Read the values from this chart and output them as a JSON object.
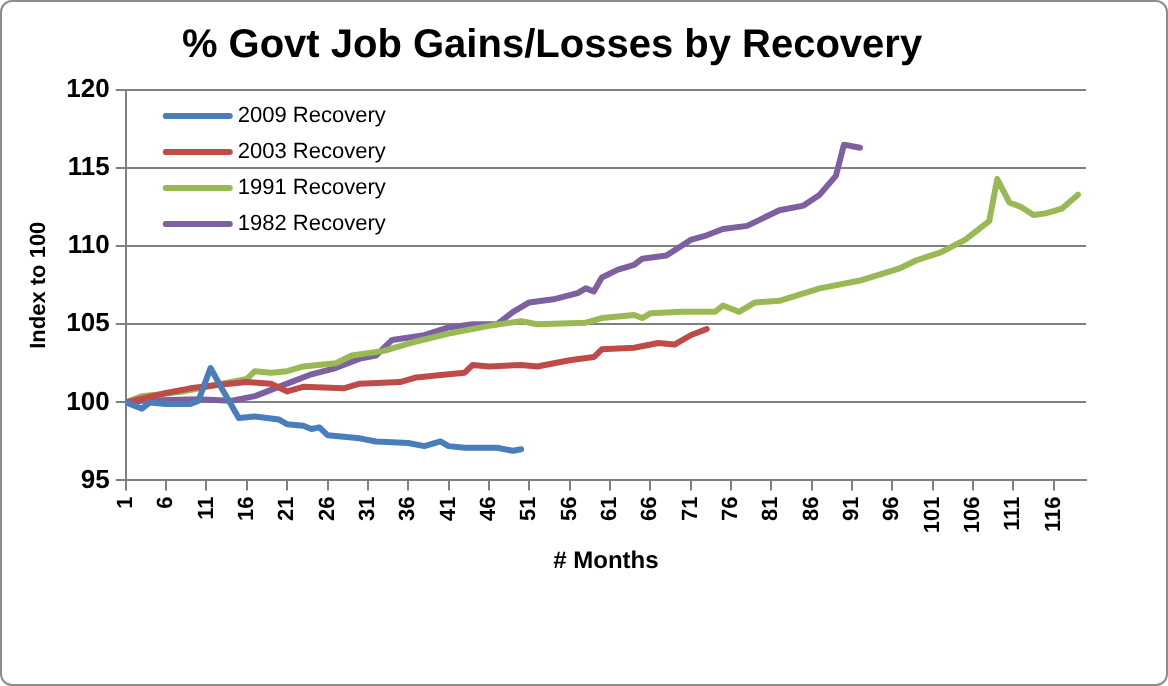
{
  "chart_data": {
    "type": "line",
    "title": "% Govt Job Gains/Losses by Recovery",
    "xlabel": "# Months",
    "ylabel": "Index to 100",
    "xlim": [
      1,
      120
    ],
    "xticks": [
      1,
      6,
      11,
      16,
      21,
      26,
      31,
      36,
      41,
      46,
      51,
      56,
      61,
      66,
      71,
      76,
      81,
      86,
      91,
      96,
      101,
      106,
      111,
      116
    ],
    "ylim": [
      95,
      120
    ],
    "yticks": [
      95,
      100,
      105,
      110,
      115,
      120
    ],
    "grid": "y",
    "legend": "top left",
    "marker": "none",
    "line_style": "solid",
    "series": [
      {
        "name": "2009 Recovery",
        "color": "#4a7ebb",
        "x": [
          1,
          3,
          4,
          6,
          9,
          10,
          11.5,
          13,
          15,
          17,
          20,
          21,
          23,
          24,
          25,
          26,
          28,
          30,
          32,
          36,
          38,
          40,
          41,
          43,
          47,
          49,
          50
        ],
        "values": [
          100,
          99.6,
          100,
          99.9,
          99.9,
          100.1,
          102.2,
          100.8,
          99,
          99.1,
          98.9,
          98.6,
          98.5,
          98.3,
          98.4,
          97.9,
          97.8,
          97.7,
          97.5,
          97.4,
          97.2,
          97.5,
          97.2,
          97.1,
          97.1,
          96.9,
          97
        ]
      },
      {
        "name": "2003 Recovery",
        "color": "#be4b48",
        "x": [
          1,
          6,
          9,
          12,
          16,
          19,
          21,
          23,
          28,
          30,
          35,
          37,
          41,
          43,
          44,
          46,
          50,
          52,
          56,
          59,
          60,
          64,
          67,
          69,
          71,
          73
        ],
        "values": [
          100,
          100.6,
          100.9,
          101.1,
          101.3,
          101.2,
          100.7,
          101,
          100.9,
          101.2,
          101.3,
          101.6,
          101.8,
          101.9,
          102.4,
          102.3,
          102.4,
          102.3,
          102.7,
          102.9,
          103.4,
          103.5,
          103.8,
          103.7,
          104.3,
          104.7
        ]
      },
      {
        "name": "1991 Recovery",
        "color": "#98b954",
        "x": [
          1,
          3,
          5,
          8,
          12,
          16,
          17,
          19,
          21,
          23,
          27,
          29,
          33,
          37,
          41,
          46,
          50,
          52,
          58,
          60,
          64,
          65,
          66,
          70,
          74,
          75,
          77,
          79,
          82,
          87,
          92,
          97,
          99,
          102,
          105,
          108,
          109,
          110.5,
          112,
          113.5,
          115,
          117,
          119
        ],
        "values": [
          100,
          100.4,
          100.5,
          100.7,
          101.1,
          101.5,
          102,
          101.9,
          102,
          102.3,
          102.5,
          103,
          103.3,
          103.9,
          104.4,
          104.9,
          105.2,
          105,
          105.1,
          105.4,
          105.6,
          105.4,
          105.7,
          105.8,
          105.8,
          106.2,
          105.8,
          106.4,
          106.5,
          107.3,
          107.8,
          108.6,
          109.1,
          109.6,
          110.4,
          111.6,
          114.3,
          112.8,
          112.5,
          112,
          112.1,
          112.4,
          113.3
        ]
      },
      {
        "name": "1982 Recovery",
        "color": "#7d60a0",
        "x": [
          1,
          3,
          10,
          14,
          17,
          19,
          21,
          24,
          27,
          30,
          32,
          34,
          38,
          41,
          44,
          47,
          49,
          51,
          54,
          57,
          58,
          59,
          60,
          62,
          64,
          65,
          68,
          71,
          73,
          75,
          78,
          80,
          82,
          85,
          87,
          89,
          90,
          92
        ],
        "values": [
          100,
          100.1,
          100.2,
          100.1,
          100.4,
          100.8,
          101.2,
          101.8,
          102.2,
          102.8,
          103,
          104,
          104.3,
          104.8,
          105,
          105,
          105.8,
          106.4,
          106.6,
          107,
          107.3,
          107.1,
          108,
          108.5,
          108.8,
          109.2,
          109.4,
          110.4,
          110.7,
          111.1,
          111.3,
          111.8,
          112.3,
          112.6,
          113.3,
          114.5,
          116.5,
          116.3
        ]
      }
    ]
  }
}
